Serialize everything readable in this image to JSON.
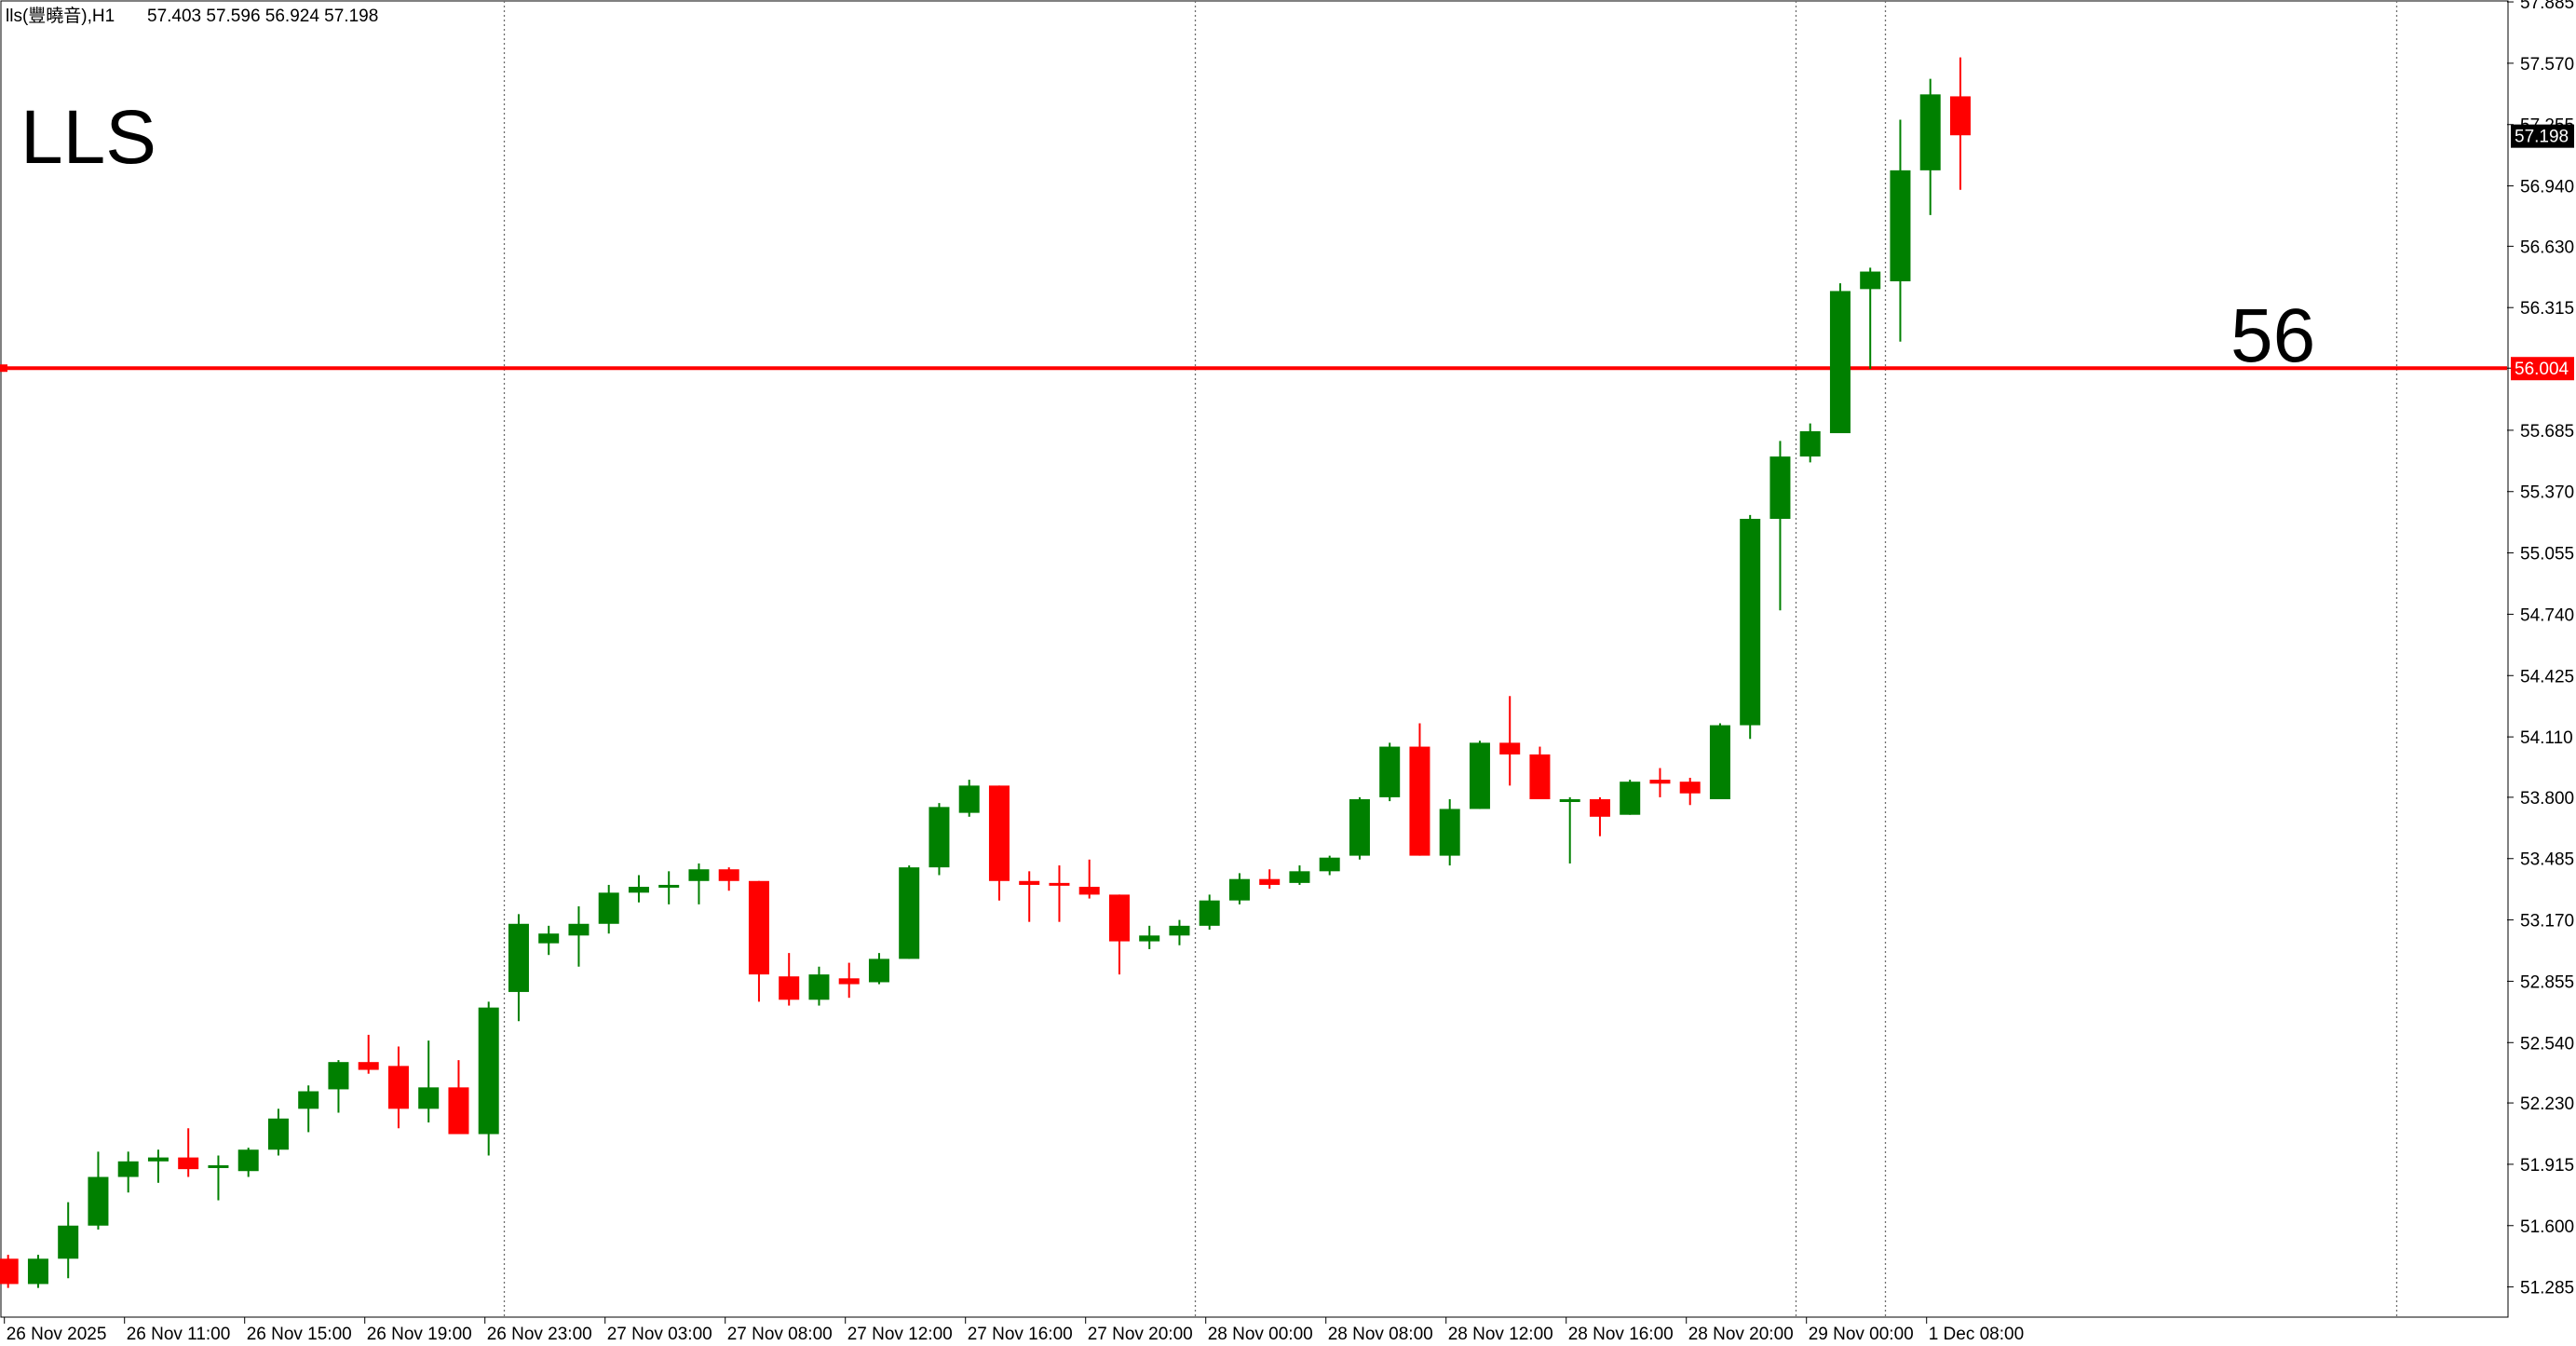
{
  "header": {
    "symbol_label": "lls(豐曉音),H1",
    "ohlc_label": "57.403 57.596 56.924 57.198"
  },
  "annotations": {
    "symbol_big": "LLS",
    "level_label": "56"
  },
  "colors": {
    "bull": "#008000",
    "bear": "#ff0000",
    "level_line": "#ff0000",
    "grid": "#6e6e6e",
    "axis": "#000000",
    "price_tag_bg": "#000000",
    "level_tag_bg": "#ff0000"
  },
  "chart_data": {
    "type": "candlestick",
    "timeframe": "H1",
    "ylim": [
      51.13,
      57.89
    ],
    "y_ticks": [
      "57.885",
      "57.570",
      "57.255",
      "56.940",
      "56.630",
      "56.315",
      "56.004",
      "55.685",
      "55.370",
      "55.055",
      "54.740",
      "54.425",
      "54.110",
      "53.800",
      "53.485",
      "53.170",
      "52.855",
      "52.540",
      "52.230",
      "51.915",
      "51.600",
      "51.285"
    ],
    "y_tick_values": [
      57.885,
      57.57,
      57.255,
      56.94,
      56.63,
      56.315,
      56.004,
      55.685,
      55.37,
      55.055,
      54.74,
      54.425,
      54.11,
      53.8,
      53.485,
      53.17,
      52.855,
      52.54,
      52.23,
      51.915,
      51.6,
      51.285
    ],
    "x_labels": [
      "26 Nov 2025",
      "26 Nov 11:00",
      "26 Nov 15:00",
      "26 Nov 19:00",
      "26 Nov 23:00",
      "27 Nov 03:00",
      "27 Nov 08:00",
      "27 Nov 12:00",
      "27 Nov 16:00",
      "27 Nov 20:00",
      "28 Nov 00:00",
      "28 Nov 08:00",
      "28 Nov 12:00",
      "28 Nov 16:00",
      "28 Nov 20:00",
      "29 Nov 00:00",
      "1 Dec 08:00"
    ],
    "x_label_bar_index": [
      0,
      4,
      8,
      12,
      16,
      20,
      24,
      28,
      32,
      36,
      40,
      44,
      48,
      52,
      56,
      60,
      64
    ],
    "separator_bar_index": [
      17,
      40,
      60,
      63,
      80
    ],
    "horizontal_level": {
      "value": 56.004,
      "label": "56.004"
    },
    "current_price": {
      "value": 57.198,
      "label": "57.198"
    },
    "candles": [
      {
        "o": 51.43,
        "h": 51.45,
        "l": 51.28,
        "c": 51.3
      },
      {
        "o": 51.3,
        "h": 51.45,
        "l": 51.28,
        "c": 51.43
      },
      {
        "o": 51.43,
        "h": 51.72,
        "l": 51.33,
        "c": 51.6
      },
      {
        "o": 51.6,
        "h": 51.98,
        "l": 51.58,
        "c": 51.85
      },
      {
        "o": 51.85,
        "h": 51.98,
        "l": 51.77,
        "c": 51.93
      },
      {
        "o": 51.93,
        "h": 51.99,
        "l": 51.82,
        "c": 51.95
      },
      {
        "o": 51.95,
        "h": 52.1,
        "l": 51.85,
        "c": 51.89
      },
      {
        "o": 51.9,
        "h": 51.96,
        "l": 51.73,
        "c": 51.91
      },
      {
        "o": 51.88,
        "h": 52.0,
        "l": 51.85,
        "c": 51.99
      },
      {
        "o": 51.99,
        "h": 52.2,
        "l": 51.96,
        "c": 52.15
      },
      {
        "o": 52.2,
        "h": 52.32,
        "l": 52.08,
        "c": 52.29
      },
      {
        "o": 52.3,
        "h": 52.45,
        "l": 52.18,
        "c": 52.44
      },
      {
        "o": 52.44,
        "h": 52.58,
        "l": 52.38,
        "c": 52.4
      },
      {
        "o": 52.42,
        "h": 52.52,
        "l": 52.1,
        "c": 52.2
      },
      {
        "o": 52.2,
        "h": 52.55,
        "l": 52.13,
        "c": 52.31
      },
      {
        "o": 52.31,
        "h": 52.45,
        "l": 52.07,
        "c": 52.07
      },
      {
        "o": 52.07,
        "h": 52.75,
        "l": 51.96,
        "c": 52.72
      },
      {
        "o": 52.8,
        "h": 53.2,
        "l": 52.65,
        "c": 53.15
      },
      {
        "o": 53.05,
        "h": 53.14,
        "l": 52.99,
        "c": 53.1
      },
      {
        "o": 53.09,
        "h": 53.24,
        "l": 52.93,
        "c": 53.15
      },
      {
        "o": 53.15,
        "h": 53.35,
        "l": 53.1,
        "c": 53.31
      },
      {
        "o": 53.31,
        "h": 53.4,
        "l": 53.26,
        "c": 53.34
      },
      {
        "o": 53.34,
        "h": 53.42,
        "l": 53.25,
        "c": 53.35
      },
      {
        "o": 53.37,
        "h": 53.46,
        "l": 53.25,
        "c": 53.43
      },
      {
        "o": 53.43,
        "h": 53.44,
        "l": 53.32,
        "c": 53.37
      },
      {
        "o": 53.37,
        "h": 53.37,
        "l": 52.75,
        "c": 52.89
      },
      {
        "o": 52.88,
        "h": 53.0,
        "l": 52.73,
        "c": 52.76
      },
      {
        "o": 52.76,
        "h": 52.93,
        "l": 52.73,
        "c": 52.89
      },
      {
        "o": 52.87,
        "h": 52.95,
        "l": 52.77,
        "c": 52.84
      },
      {
        "o": 52.85,
        "h": 53.0,
        "l": 52.84,
        "c": 52.97
      },
      {
        "o": 52.97,
        "h": 53.45,
        "l": 52.97,
        "c": 53.44
      },
      {
        "o": 53.44,
        "h": 53.77,
        "l": 53.4,
        "c": 53.75
      },
      {
        "o": 53.72,
        "h": 53.89,
        "l": 53.7,
        "c": 53.86
      },
      {
        "o": 53.86,
        "h": 53.86,
        "l": 53.27,
        "c": 53.37
      },
      {
        "o": 53.37,
        "h": 53.42,
        "l": 53.16,
        "c": 53.35
      },
      {
        "o": 53.36,
        "h": 53.45,
        "l": 53.16,
        "c": 53.35
      },
      {
        "o": 53.34,
        "h": 53.48,
        "l": 53.28,
        "c": 53.3
      },
      {
        "o": 53.3,
        "h": 53.3,
        "l": 52.89,
        "c": 53.06
      },
      {
        "o": 53.06,
        "h": 53.14,
        "l": 53.02,
        "c": 53.09
      },
      {
        "o": 53.09,
        "h": 53.17,
        "l": 53.04,
        "c": 53.14
      },
      {
        "o": 53.14,
        "h": 53.3,
        "l": 53.12,
        "c": 53.27
      },
      {
        "o": 53.27,
        "h": 53.41,
        "l": 53.25,
        "c": 53.38
      },
      {
        "o": 53.38,
        "h": 53.43,
        "l": 53.33,
        "c": 53.35
      },
      {
        "o": 53.36,
        "h": 53.45,
        "l": 53.35,
        "c": 53.42
      },
      {
        "o": 53.42,
        "h": 53.5,
        "l": 53.4,
        "c": 53.49
      },
      {
        "o": 53.5,
        "h": 53.8,
        "l": 53.48,
        "c": 53.79
      },
      {
        "o": 53.8,
        "h": 54.08,
        "l": 53.78,
        "c": 54.06
      },
      {
        "o": 54.06,
        "h": 54.18,
        "l": 53.5,
        "c": 53.5
      },
      {
        "o": 53.5,
        "h": 53.79,
        "l": 53.45,
        "c": 53.74
      },
      {
        "o": 53.74,
        "h": 54.09,
        "l": 53.74,
        "c": 54.08
      },
      {
        "o": 54.08,
        "h": 54.32,
        "l": 53.86,
        "c": 54.02
      },
      {
        "o": 54.02,
        "h": 54.06,
        "l": 53.79,
        "c": 53.79
      },
      {
        "o": 53.79,
        "h": 53.8,
        "l": 53.46,
        "c": 53.79
      },
      {
        "o": 53.79,
        "h": 53.8,
        "l": 53.6,
        "c": 53.7
      },
      {
        "o": 53.71,
        "h": 53.89,
        "l": 53.71,
        "c": 53.88
      },
      {
        "o": 53.89,
        "h": 53.95,
        "l": 53.8,
        "c": 53.87
      },
      {
        "o": 53.88,
        "h": 53.9,
        "l": 53.76,
        "c": 53.82
      },
      {
        "o": 53.79,
        "h": 54.18,
        "l": 53.79,
        "c": 54.17
      },
      {
        "o": 54.17,
        "h": 55.25,
        "l": 54.1,
        "c": 55.23
      },
      {
        "o": 55.23,
        "h": 55.63,
        "l": 54.76,
        "c": 55.55
      },
      {
        "o": 55.55,
        "h": 55.72,
        "l": 55.52,
        "c": 55.68
      },
      {
        "o": 55.67,
        "h": 56.44,
        "l": 55.67,
        "c": 56.4
      },
      {
        "o": 56.41,
        "h": 56.52,
        "l": 56.0,
        "c": 56.5
      },
      {
        "o": 56.45,
        "h": 57.28,
        "l": 56.14,
        "c": 57.02
      },
      {
        "o": 57.02,
        "h": 57.49,
        "l": 56.79,
        "c": 57.41
      },
      {
        "o": 57.4,
        "h": 57.6,
        "l": 56.92,
        "c": 57.2
      }
    ]
  }
}
